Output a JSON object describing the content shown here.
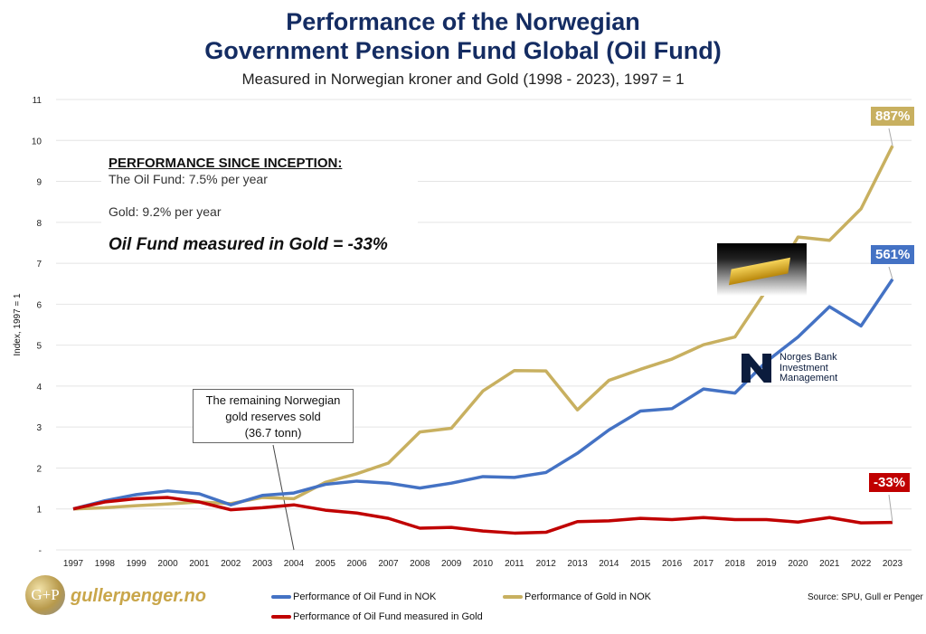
{
  "title_line1": "Performance of the Norwegian",
  "title_line2": "Government Pension Fund Global (Oil Fund)",
  "subtitle": "Measured in Norwegian kroner and Gold (1998 - 2023), 1997 = 1",
  "performance_box": {
    "heading": "PERFORMANCE SINCE INCEPTION:",
    "oil_fund": "The Oil Fund: 7.5% per year",
    "gold": "Gold: 9.2% per year",
    "oil_in_gold": "Oil Fund measured in Gold = -33%"
  },
  "annotation": {
    "line1": "The remaining Norwegian",
    "line2": "gold reserves sold",
    "line3": "(36.7 tonn)"
  },
  "end_labels": {
    "gold": "887%",
    "oil": "561%",
    "oil_in_gold": "-33%"
  },
  "nbim_logo": "Norges Bank Investment Management",
  "brand": {
    "logo_mark": "G+P",
    "name": "gullerpenger.no"
  },
  "source": "Source: SPU, Gull er Penger",
  "colors": {
    "oil": "#4472c4",
    "gold": "#c8b060",
    "oil_in_gold": "#c00000",
    "title": "#142c62"
  },
  "chart_data": {
    "type": "line",
    "title": "Performance of the Norwegian Government Pension Fund Global (Oil Fund)",
    "subtitle": "Measured in Norwegian kroner and Gold (1998 - 2023), 1997 = 1",
    "ylabel": "Index, 1997 = 1",
    "xlabel": "",
    "ylim": [
      0,
      11
    ],
    "y_ticks": [
      "-",
      "1",
      "2",
      "3",
      "4",
      "5",
      "6",
      "7",
      "8",
      "9",
      "10",
      "11"
    ],
    "grid": true,
    "legend_position": "bottom",
    "categories": [
      "1997",
      "1998",
      "1999",
      "2000",
      "2001",
      "2002",
      "2003",
      "2004",
      "2005",
      "2006",
      "2007",
      "2008",
      "2009",
      "2010",
      "2011",
      "2012",
      "2013",
      "2014",
      "2015",
      "2016",
      "2017",
      "2018",
      "2019",
      "2020",
      "2021",
      "2022",
      "2023"
    ],
    "series": [
      {
        "name": "Performance of Oil Fund in NOK",
        "color": "#4472c4",
        "values": [
          1.0,
          1.2,
          1.35,
          1.44,
          1.37,
          1.1,
          1.33,
          1.39,
          1.6,
          1.68,
          1.63,
          1.51,
          1.63,
          1.79,
          1.77,
          1.89,
          2.36,
          2.93,
          3.39,
          3.45,
          3.93,
          3.83,
          4.6,
          5.2,
          5.94,
          5.47,
          6.61
        ]
      },
      {
        "name": "Performance of Gold in NOK",
        "color": "#c8b060",
        "values": [
          1.0,
          1.03,
          1.08,
          1.12,
          1.17,
          1.13,
          1.28,
          1.25,
          1.65,
          1.86,
          2.12,
          2.88,
          2.97,
          3.88,
          4.38,
          4.37,
          3.42,
          4.14,
          4.41,
          4.66,
          5.01,
          5.2,
          6.35,
          7.64,
          7.56,
          8.33,
          9.87
        ]
      },
      {
        "name": "Performance of Oil Fund measured in Gold",
        "color": "#c00000",
        "values": [
          1.0,
          1.17,
          1.25,
          1.28,
          1.17,
          0.98,
          1.03,
          1.1,
          0.97,
          0.9,
          0.77,
          0.53,
          0.55,
          0.46,
          0.41,
          0.43,
          0.69,
          0.71,
          0.77,
          0.74,
          0.79,
          0.74,
          0.74,
          0.68,
          0.79,
          0.66,
          0.67
        ]
      }
    ]
  }
}
